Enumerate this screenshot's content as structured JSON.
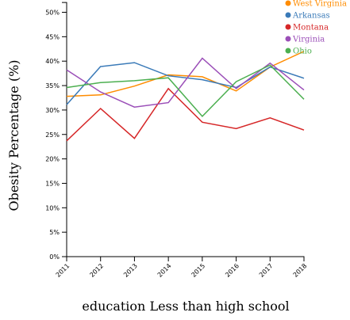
{
  "chart_data": {
    "type": "line",
    "xlabel": "education Less than high school",
    "ylabel": "Obesity Percentage (%)",
    "x": [
      2011,
      2012,
      2013,
      2014,
      2015,
      2016,
      2017,
      2018
    ],
    "ylim": [
      0,
      52
    ],
    "yticks": [
      "0%",
      "5%",
      "10%",
      "15%",
      "20%",
      "25%",
      "30%",
      "35%",
      "40%",
      "45%",
      "50%"
    ],
    "ytick_values": [
      0,
      5,
      10,
      15,
      20,
      25,
      30,
      35,
      40,
      45,
      50
    ],
    "grid": false,
    "legend_position": "top-right",
    "series": [
      {
        "name": "West Virginia",
        "color": "#ff8c00",
        "values": [
          32.8,
          33.1,
          34.9,
          37.2,
          36.8,
          33.9,
          38.8,
          42.0
        ]
      },
      {
        "name": "Arkansas",
        "color": "#3a7ab8",
        "values": [
          31.1,
          38.9,
          39.7,
          37.0,
          36.2,
          34.6,
          38.8,
          36.5
        ]
      },
      {
        "name": "Montana",
        "color": "#d62728",
        "values": [
          23.7,
          30.3,
          24.2,
          34.4,
          27.5,
          26.2,
          28.4,
          25.9
        ]
      },
      {
        "name": "Virginia",
        "color": "#9b4fb8",
        "values": [
          38.2,
          33.7,
          30.6,
          31.5,
          40.6,
          34.4,
          39.6,
          34.1
        ]
      },
      {
        "name": "Ohio",
        "color": "#4caf50",
        "values": [
          34.6,
          35.6,
          36.0,
          36.6,
          28.7,
          35.8,
          39.2,
          32.2
        ]
      }
    ]
  }
}
